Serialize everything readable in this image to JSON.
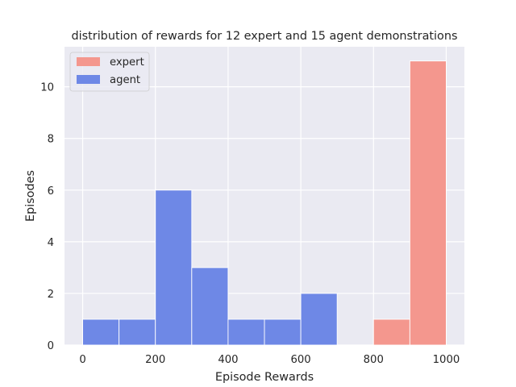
{
  "chart_data": {
    "type": "bar",
    "title": "distribution of rewards for 12 expert and 15 agent demonstrations",
    "xlabel": "Episode Rewards",
    "ylabel": "Episodes",
    "xlim": [
      -50,
      1050
    ],
    "ylim": [
      0,
      11.55
    ],
    "xticks": [
      0,
      200,
      400,
      600,
      800,
      1000
    ],
    "yticks": [
      0,
      2,
      4,
      6,
      8,
      10
    ],
    "grid": true,
    "legend_position": "top-left",
    "bin_edges": [
      0,
      100,
      200,
      300,
      400,
      500,
      600,
      700,
      800,
      900,
      1000
    ],
    "series": [
      {
        "name": "expert",
        "color": "#f4978e",
        "values": [
          0,
          0,
          0,
          0,
          0,
          0,
          0,
          0,
          1,
          11
        ]
      },
      {
        "name": "agent",
        "color": "#6e88e6",
        "values": [
          1,
          1,
          6,
          3,
          1,
          1,
          2,
          0,
          0,
          0
        ]
      }
    ]
  }
}
